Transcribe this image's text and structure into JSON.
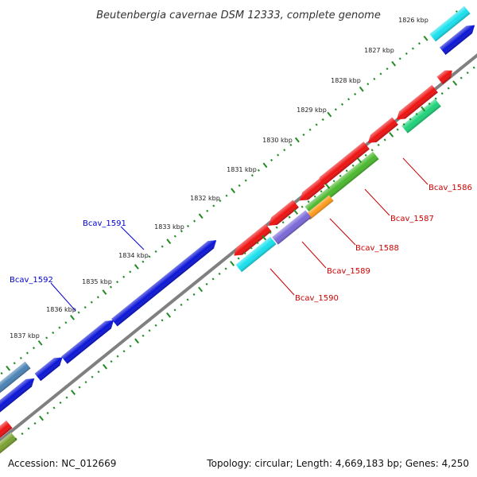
{
  "title": "Beutenbergia cavernae DSM 12333, complete genome",
  "footer": {
    "accession": "Accession: NC_012669",
    "summary": "Topology: circular; Length: 4,669,183 bp; Genes: 4,250"
  },
  "colors": {
    "backbone": "#808080",
    "tick": "#228b22",
    "forward_label": "#0000cc",
    "reverse_label": "#cc0000",
    "red": "#ee1111",
    "blue": "#0a14d6",
    "cyan": "#18e0ee",
    "green": "#1ed27a",
    "green_olive": "#4ab82e",
    "purple": "#7a68d8",
    "orange": "#ff9a1a",
    "steel": "#4a82b4",
    "olive": "#7aa030"
  },
  "scale_labels": [
    "1826 kbp",
    "1827 kbp",
    "1828 kbp",
    "1829 kbp",
    "1830 kbp",
    "1831 kbp",
    "1832 kbp",
    "1833 kbp",
    "1834 kbp",
    "1835 kbp",
    "1836 kbp",
    "1837 kbp"
  ],
  "gene_labels": [
    {
      "text": "Bcav_1586",
      "strand": "reverse"
    },
    {
      "text": "Bcav_1587",
      "strand": "reverse"
    },
    {
      "text": "Bcav_1588",
      "strand": "reverse"
    },
    {
      "text": "Bcav_1589",
      "strand": "reverse"
    },
    {
      "text": "Bcav_1590",
      "strand": "reverse"
    },
    {
      "text": "Bcav_1591",
      "strand": "forward"
    },
    {
      "text": "Bcav_1592",
      "strand": "forward"
    }
  ]
}
